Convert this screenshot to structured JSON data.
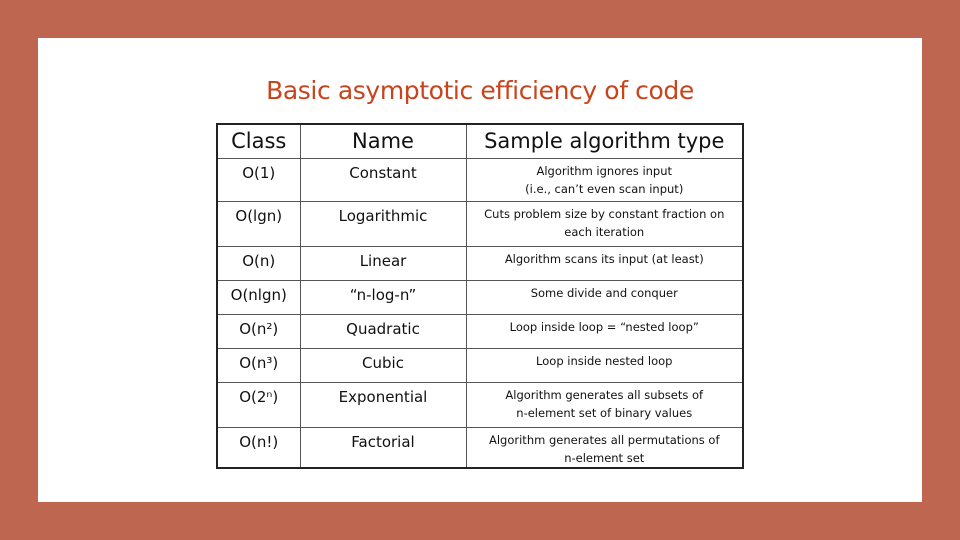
{
  "slide": {
    "title": "Basic asymptotic efficiency  of code",
    "table": {
      "headers": [
        "Class",
        "Name",
        "Sample algorithm type"
      ],
      "rows": [
        {
          "class": "O(1)",
          "name": "Constant",
          "description": [
            "Algorithm ignores input",
            "(i.e., can’t even scan input)"
          ]
        },
        {
          "class": "O(lgn)",
          "name": "Logarithmic",
          "description": [
            "Cuts problem size by constant fraction on",
            "each iteration"
          ]
        },
        {
          "class": "O(n)",
          "name": "Linear",
          "description": [
            "Algorithm scans its input (at least)"
          ]
        },
        {
          "class": "O(nlgn)",
          "name": "“n-log-n”",
          "description": [
            "Some divide and conquer"
          ]
        },
        {
          "class": "O(n²)",
          "name": "Quadratic",
          "description": [
            "Loop inside loop = “nested loop”"
          ]
        },
        {
          "class": "O(n³)",
          "name": "Cubic",
          "description": [
            "Loop inside nested loop"
          ]
        },
        {
          "class": "O(2ⁿ)",
          "name": "Exponential",
          "description": [
            "Algorithm generates all subsets of",
            "n-element set of binary values"
          ]
        },
        {
          "class": "O(n!)",
          "name": "Factorial",
          "description": [
            "Algorithm generates all permutations of",
            "n-element set"
          ]
        }
      ]
    }
  },
  "colors": {
    "background": "#bf6650",
    "title": "#c8441c"
  }
}
